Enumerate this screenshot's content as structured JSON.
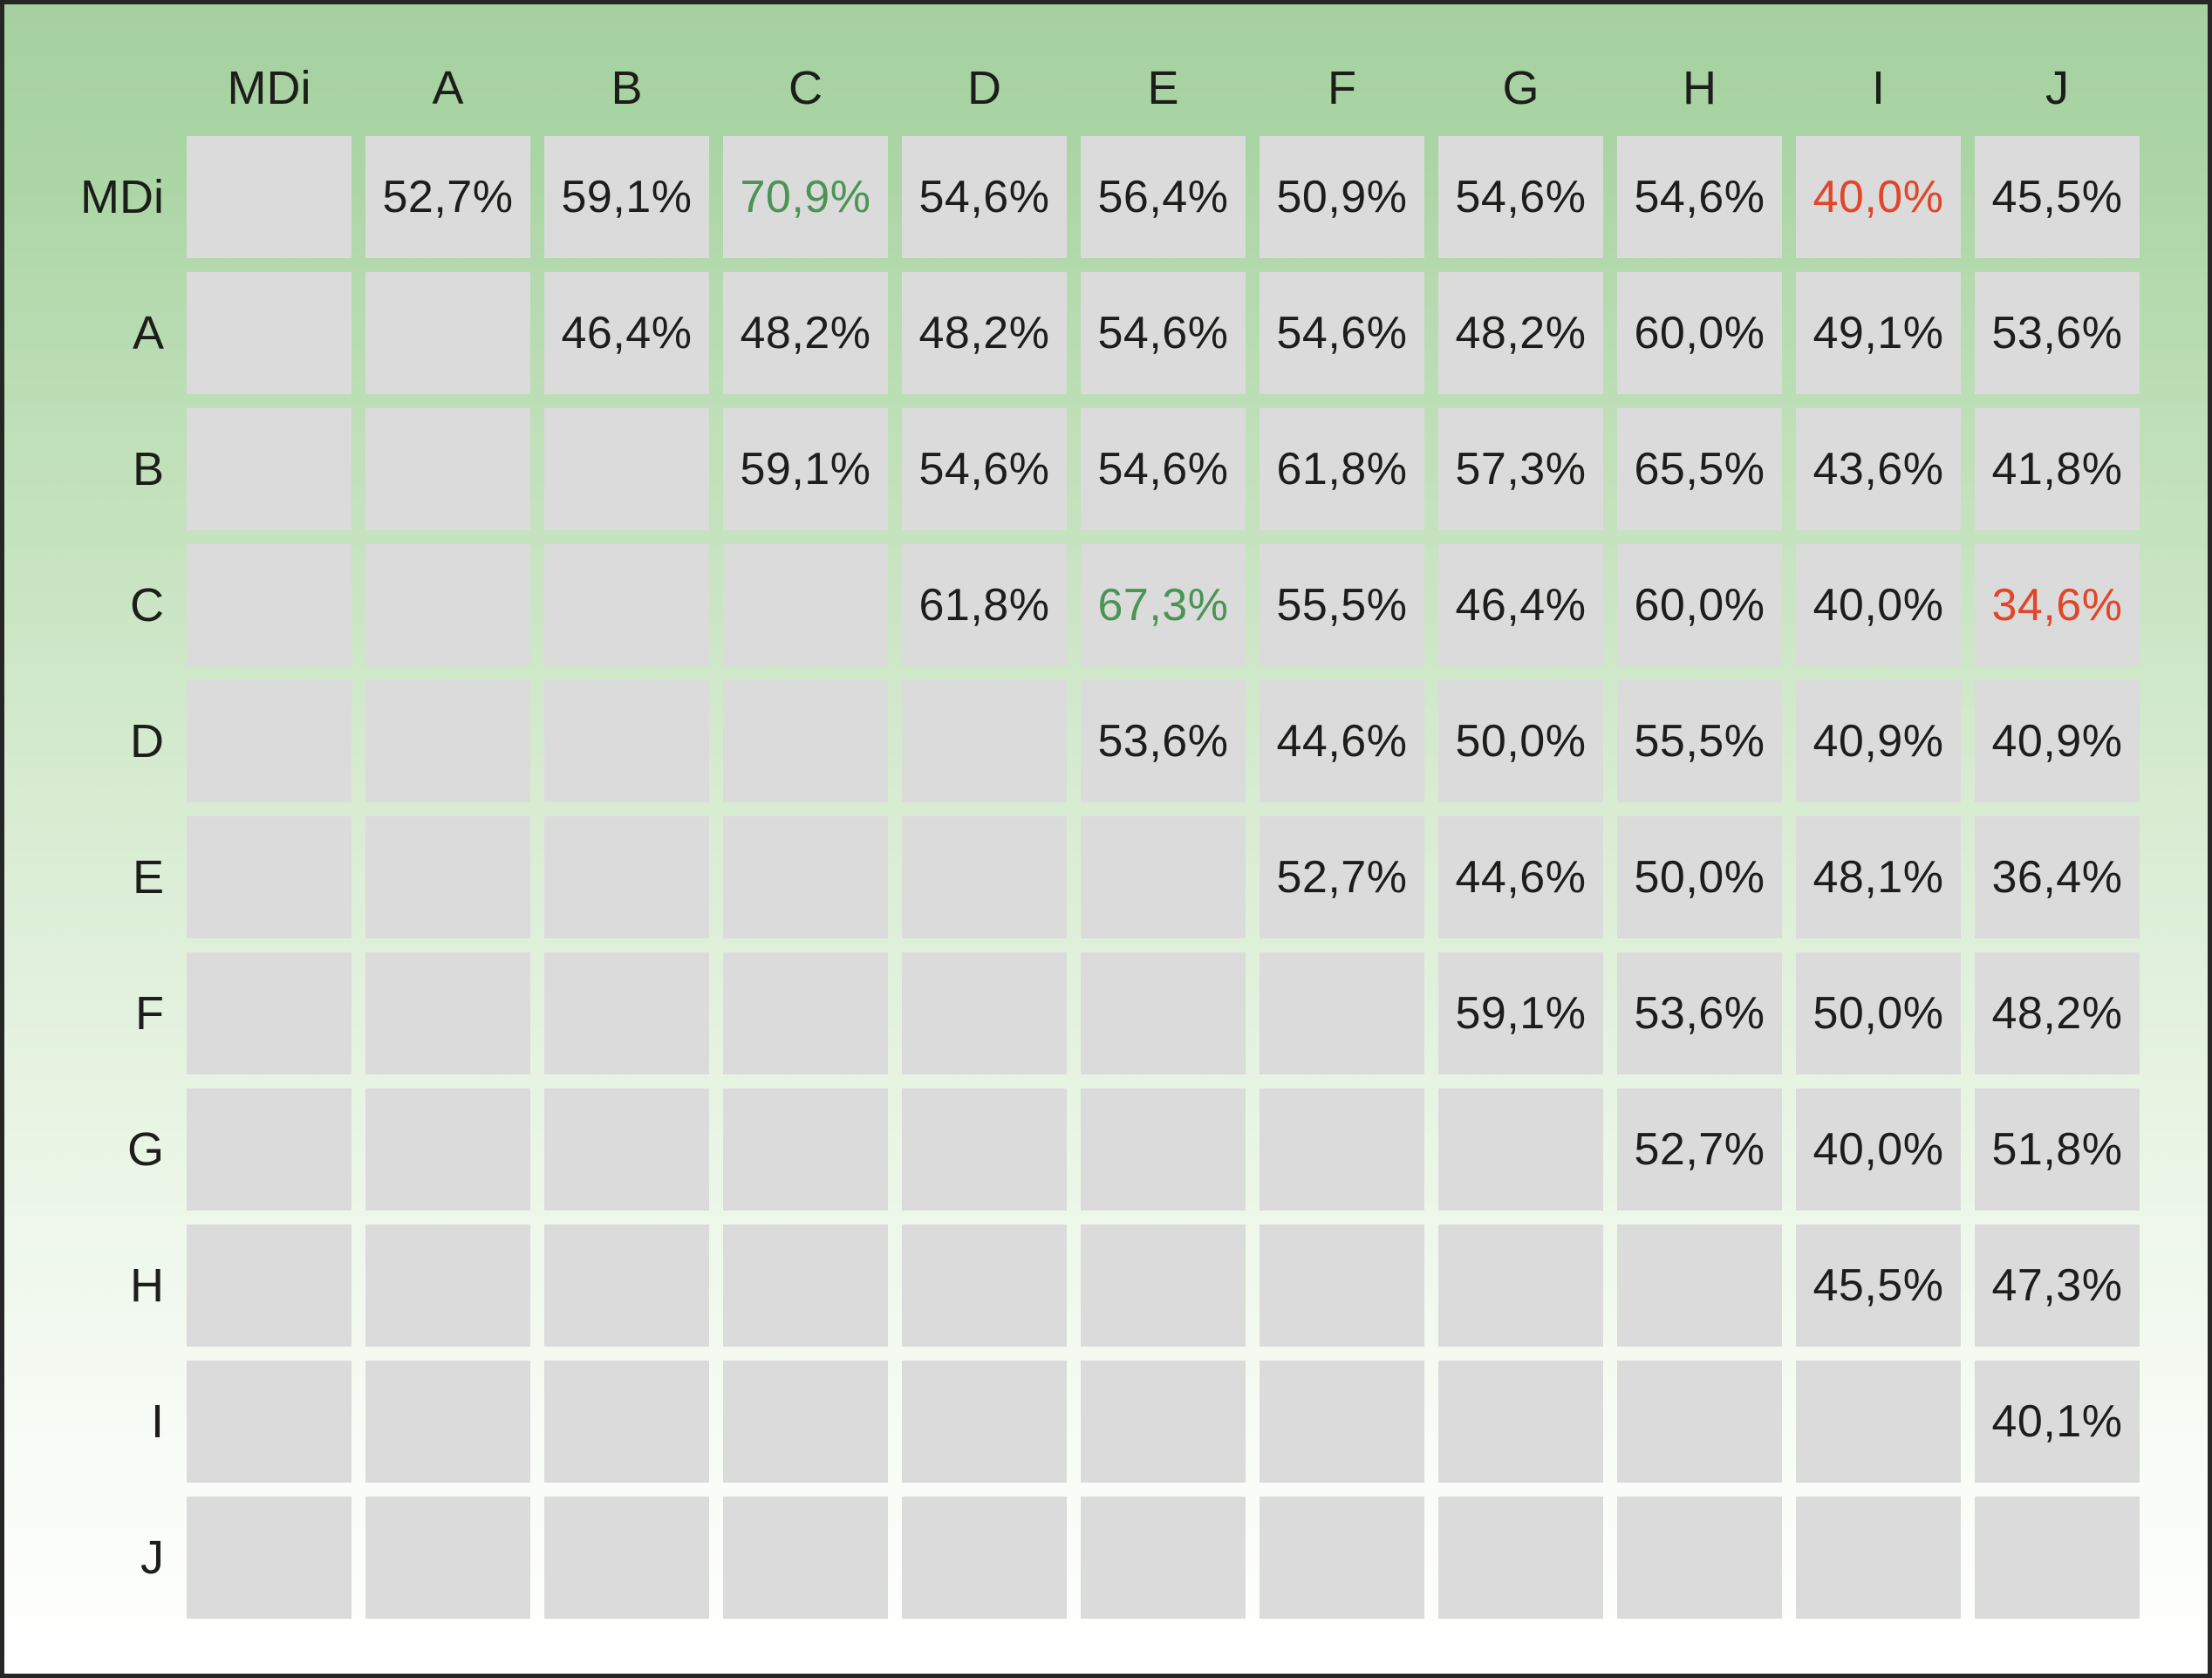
{
  "colors": {
    "background_top": "#a5d0a0",
    "background_bottom": "#ffffff",
    "cell_background": "#dbdbdc",
    "border": "#262626",
    "value_default": "#1d1d1b",
    "value_high": "#4a9552",
    "value_low": "#e2462a"
  },
  "matrix": {
    "column_headers": [
      "MDi",
      "A",
      "B",
      "C",
      "D",
      "E",
      "F",
      "G",
      "H",
      "I",
      "J"
    ],
    "rows": [
      {
        "label": "MDi",
        "cells": [
          null,
          {
            "t": "52,7%"
          },
          {
            "t": "59,1%"
          },
          {
            "t": "70,9%",
            "hl": "high"
          },
          {
            "t": "54,6%"
          },
          {
            "t": "56,4%"
          },
          {
            "t": "50,9%"
          },
          {
            "t": "54,6%"
          },
          {
            "t": "54,6%"
          },
          {
            "t": "40,0%",
            "hl": "low"
          },
          {
            "t": "45,5%"
          }
        ]
      },
      {
        "label": "A",
        "cells": [
          null,
          null,
          {
            "t": "46,4%"
          },
          {
            "t": "48,2%"
          },
          {
            "t": "48,2%"
          },
          {
            "t": "54,6%"
          },
          {
            "t": "54,6%"
          },
          {
            "t": "48,2%"
          },
          {
            "t": "60,0%"
          },
          {
            "t": "49,1%"
          },
          {
            "t": "53,6%"
          }
        ]
      },
      {
        "label": "B",
        "cells": [
          null,
          null,
          null,
          {
            "t": "59,1%"
          },
          {
            "t": "54,6%"
          },
          {
            "t": "54,6%"
          },
          {
            "t": "61,8%"
          },
          {
            "t": "57,3%"
          },
          {
            "t": "65,5%"
          },
          {
            "t": "43,6%"
          },
          {
            "t": "41,8%"
          }
        ]
      },
      {
        "label": "C",
        "cells": [
          null,
          null,
          null,
          null,
          {
            "t": "61,8%"
          },
          {
            "t": "67,3%",
            "hl": "high"
          },
          {
            "t": "55,5%"
          },
          {
            "t": "46,4%"
          },
          {
            "t": "60,0%"
          },
          {
            "t": "40,0%"
          },
          {
            "t": "34,6%",
            "hl": "low"
          }
        ]
      },
      {
        "label": "D",
        "cells": [
          null,
          null,
          null,
          null,
          null,
          {
            "t": "53,6%"
          },
          {
            "t": "44,6%"
          },
          {
            "t": "50,0%"
          },
          {
            "t": "55,5%"
          },
          {
            "t": "40,9%"
          },
          {
            "t": "40,9%"
          }
        ]
      },
      {
        "label": "E",
        "cells": [
          null,
          null,
          null,
          null,
          null,
          null,
          {
            "t": "52,7%"
          },
          {
            "t": "44,6%"
          },
          {
            "t": "50,0%"
          },
          {
            "t": "48,1%"
          },
          {
            "t": "36,4%"
          }
        ]
      },
      {
        "label": "F",
        "cells": [
          null,
          null,
          null,
          null,
          null,
          null,
          null,
          {
            "t": "59,1%"
          },
          {
            "t": "53,6%"
          },
          {
            "t": "50,0%"
          },
          {
            "t": "48,2%"
          }
        ]
      },
      {
        "label": "G",
        "cells": [
          null,
          null,
          null,
          null,
          null,
          null,
          null,
          null,
          {
            "t": "52,7%"
          },
          {
            "t": "40,0%"
          },
          {
            "t": "51,8%"
          }
        ]
      },
      {
        "label": "H",
        "cells": [
          null,
          null,
          null,
          null,
          null,
          null,
          null,
          null,
          null,
          {
            "t": "45,5%"
          },
          {
            "t": "47,3%"
          }
        ]
      },
      {
        "label": "I",
        "cells": [
          null,
          null,
          null,
          null,
          null,
          null,
          null,
          null,
          null,
          null,
          {
            "t": "40,1%"
          }
        ]
      },
      {
        "label": "J",
        "cells": [
          null,
          null,
          null,
          null,
          null,
          null,
          null,
          null,
          null,
          null,
          null
        ]
      }
    ]
  },
  "chart_data": {
    "type": "table",
    "title": "",
    "row_labels": [
      "MDi",
      "A",
      "B",
      "C",
      "D",
      "E",
      "F",
      "G",
      "H",
      "I",
      "J"
    ],
    "col_labels": [
      "MDi",
      "A",
      "B",
      "C",
      "D",
      "E",
      "F",
      "G",
      "H",
      "I",
      "J"
    ],
    "layout": "upper-triangular pairwise matrix; diagonal and lower triangle cells are empty gray boxes",
    "values_percent": [
      [
        null,
        52.7,
        59.1,
        70.9,
        54.6,
        56.4,
        50.9,
        54.6,
        54.6,
        40.0,
        45.5
      ],
      [
        null,
        null,
        46.4,
        48.2,
        48.2,
        54.6,
        54.6,
        48.2,
        60.0,
        49.1,
        53.6
      ],
      [
        null,
        null,
        null,
        59.1,
        54.6,
        54.6,
        61.8,
        57.3,
        65.5,
        43.6,
        41.8
      ],
      [
        null,
        null,
        null,
        null,
        61.8,
        67.3,
        55.5,
        46.4,
        60.0,
        40.0,
        34.6
      ],
      [
        null,
        null,
        null,
        null,
        null,
        53.6,
        44.6,
        50.0,
        55.5,
        40.9,
        40.9
      ],
      [
        null,
        null,
        null,
        null,
        null,
        null,
        52.7,
        44.6,
        50.0,
        48.1,
        36.4
      ],
      [
        null,
        null,
        null,
        null,
        null,
        null,
        null,
        59.1,
        53.6,
        50.0,
        48.2
      ],
      [
        null,
        null,
        null,
        null,
        null,
        null,
        null,
        null,
        52.7,
        40.0,
        51.8
      ],
      [
        null,
        null,
        null,
        null,
        null,
        null,
        null,
        null,
        null,
        45.5,
        47.3
      ],
      [
        null,
        null,
        null,
        null,
        null,
        null,
        null,
        null,
        null,
        null,
        40.1
      ],
      [
        null,
        null,
        null,
        null,
        null,
        null,
        null,
        null,
        null,
        null,
        null
      ]
    ],
    "highlighted_max_cells": [
      {
        "row": "MDi",
        "col": "C",
        "value": 70.9,
        "color": "#4a9552"
      },
      {
        "row": "C",
        "col": "E",
        "value": 67.3,
        "color": "#4a9552"
      }
    ],
    "highlighted_min_cells": [
      {
        "row": "MDi",
        "col": "I",
        "value": 40.0,
        "color": "#e2462a"
      },
      {
        "row": "C",
        "col": "J",
        "value": 34.6,
        "color": "#e2462a"
      }
    ]
  }
}
